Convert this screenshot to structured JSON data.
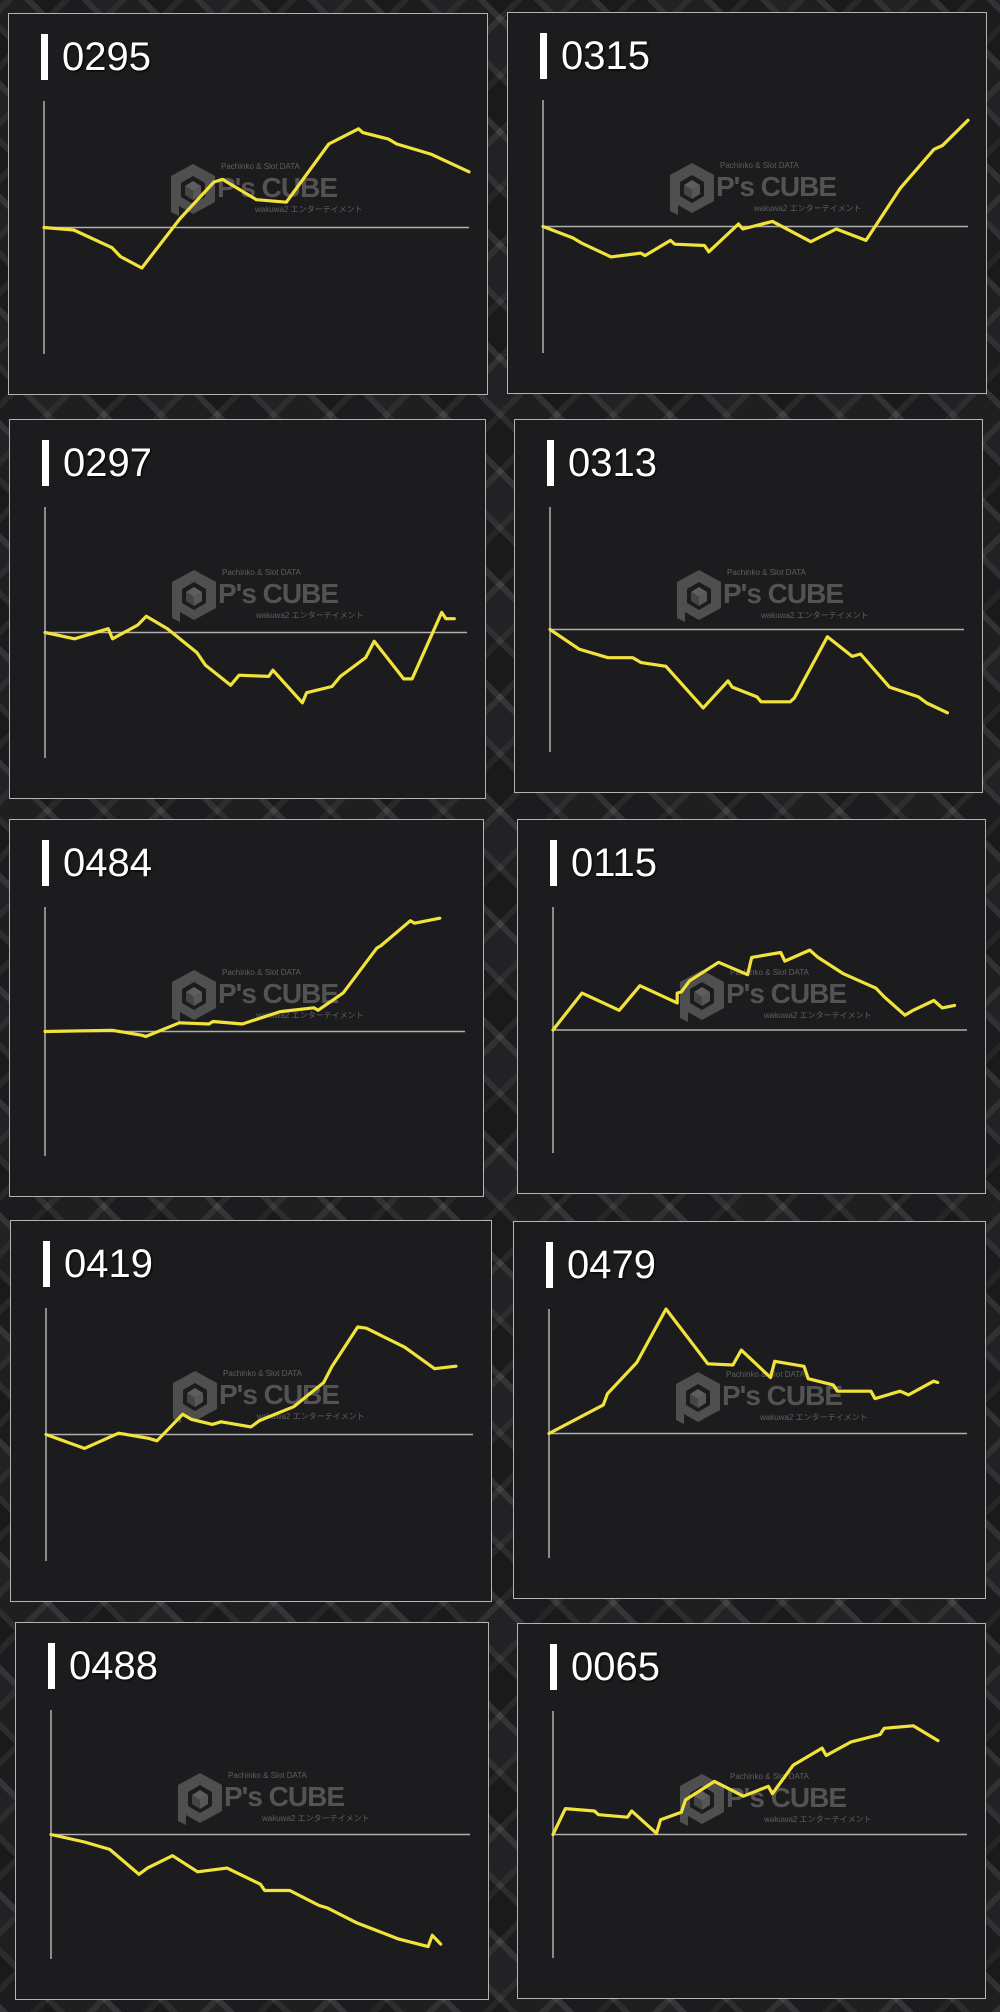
{
  "watermark": {
    "top_text": "Pachinko & Slot DATA",
    "brand": "P's CUBE",
    "tagline": "wakuwa2 エンターテイメント"
  },
  "colors": {
    "line": "#f2e33c",
    "axis": "#b0b0b0",
    "panel_bg": "#1c1c1e",
    "title": "#ffffff"
  },
  "chart_data": [
    {
      "type": "line",
      "title": "0295",
      "xlim": [
        0,
        100
      ],
      "ylim": [
        -100,
        100
      ],
      "grid": false,
      "x": [
        0,
        7,
        16,
        18,
        23,
        32,
        40,
        42,
        50,
        57,
        67,
        74,
        75,
        81,
        83,
        91,
        100
      ],
      "y": [
        0,
        -2,
        -16,
        -23,
        -32,
        7,
        36,
        38,
        22,
        20,
        66,
        78,
        75,
        70,
        66,
        58,
        44
      ]
    },
    {
      "type": "line",
      "title": "0315",
      "xlim": [
        0,
        100
      ],
      "ylim": [
        -100,
        100
      ],
      "grid": false,
      "x": [
        0,
        7,
        9,
        16,
        23,
        24,
        30,
        31,
        38,
        39,
        46,
        47,
        54,
        63,
        69,
        76,
        84,
        92,
        94,
        100
      ],
      "y": [
        0,
        -9,
        -13,
        -24,
        -21,
        -23,
        -11,
        -14,
        -15,
        -20,
        2,
        -2,
        4,
        -12,
        -2,
        -11,
        30,
        61,
        64,
        84
      ]
    },
    {
      "type": "line",
      "title": "0297",
      "xlim": [
        0,
        100
      ],
      "ylim": [
        -100,
        100
      ],
      "grid": false,
      "x": [
        0,
        7,
        15,
        16,
        22,
        24,
        29,
        36,
        38,
        44,
        46,
        53,
        54,
        61,
        62,
        68,
        70,
        76,
        78,
        85,
        87,
        94,
        95,
        97
      ],
      "y": [
        0,
        -5,
        3,
        -5,
        6,
        13,
        3,
        -16,
        -26,
        -42,
        -34,
        -35,
        -30,
        -56,
        -48,
        -43,
        -35,
        -20,
        -7,
        -37,
        -37,
        16,
        11,
        11
      ]
    },
    {
      "type": "line",
      "title": "0313",
      "xlim": [
        0,
        100
      ],
      "ylim": [
        -100,
        100
      ],
      "grid": false,
      "x": [
        0,
        7,
        14,
        20,
        22,
        28,
        37,
        43,
        44,
        50,
        51,
        58,
        59,
        67,
        73,
        75,
        82,
        89,
        91,
        96
      ],
      "y": [
        0,
        -16,
        -23,
        -23,
        -27,
        -30,
        -64,
        -42,
        -47,
        -55,
        -59,
        -59,
        -56,
        -6,
        -22,
        -20,
        -47,
        -55,
        -60,
        -68
      ]
    },
    {
      "type": "line",
      "title": "0484",
      "xlim": [
        0,
        100
      ],
      "ylim": [
        -100,
        100
      ],
      "grid": false,
      "x": [
        0,
        16,
        23,
        24,
        32,
        39,
        40,
        47,
        56,
        64,
        65,
        71,
        79,
        80,
        87,
        88,
        94
      ],
      "y": [
        0,
        1,
        -3,
        -4,
        7,
        6,
        8,
        6,
        16,
        19,
        17,
        31,
        67,
        69,
        89,
        87,
        91
      ]
    },
    {
      "type": "line",
      "title": "0115",
      "xlim": [
        0,
        100
      ],
      "ylim": [
        -100,
        100
      ],
      "grid": false,
      "x": [
        0,
        7,
        16,
        21,
        30,
        30,
        31,
        33,
        40,
        47,
        48,
        55,
        56,
        62,
        64,
        70,
        78,
        80,
        85,
        87,
        92,
        94,
        97
      ],
      "y": [
        0,
        30,
        16,
        36,
        22,
        30,
        31,
        40,
        55,
        45,
        59,
        63,
        56,
        65,
        59,
        46,
        34,
        27,
        12,
        16,
        24,
        18,
        20
      ]
    },
    {
      "type": "line",
      "title": "0419",
      "xlim": [
        0,
        100
      ],
      "ylim": [
        -100,
        100
      ],
      "grid": false,
      "x": [
        0,
        9,
        17,
        24,
        26,
        32,
        34,
        39,
        41,
        48,
        50,
        58,
        65,
        67,
        73,
        75,
        84,
        91,
        96
      ],
      "y": [
        0,
        -11,
        1,
        -3,
        -5,
        16,
        12,
        8,
        10,
        6,
        11,
        22,
        41,
        54,
        85,
        84,
        69,
        52,
        54
      ]
    },
    {
      "type": "line",
      "title": "0479",
      "xlim": [
        0,
        100
      ],
      "ylim": [
        -100,
        100
      ],
      "grid": false,
      "x": [
        0,
        13,
        14,
        21,
        28,
        38,
        44,
        46,
        53,
        54,
        61,
        62,
        68,
        69,
        77,
        78,
        84,
        86,
        92,
        93
      ],
      "y": [
        0,
        23,
        32,
        57,
        100,
        56,
        55,
        67,
        45,
        58,
        54,
        44,
        39,
        34,
        34,
        28,
        34,
        31,
        42,
        41
      ]
    },
    {
      "type": "line",
      "title": "0488",
      "xlim": [
        0,
        100
      ],
      "ylim": [
        -100,
        100
      ],
      "grid": false,
      "x": [
        0,
        8,
        14,
        21,
        23,
        29,
        35,
        42,
        50,
        51,
        57,
        64,
        66,
        73,
        83,
        90,
        91,
        93
      ],
      "y": [
        0,
        -6,
        -12,
        -32,
        -27,
        -17,
        -30,
        -27,
        -40,
        -45,
        -45,
        -57,
        -59,
        -71,
        -84,
        -90,
        -81,
        -88
      ]
    },
    {
      "type": "line",
      "title": "0065",
      "xlim": [
        0,
        100
      ],
      "ylim": [
        -100,
        100
      ],
      "grid": false,
      "x": [
        0,
        3,
        10,
        11,
        18,
        19,
        25,
        26,
        31,
        32,
        39,
        46,
        52,
        53,
        58,
        65,
        66,
        72,
        79,
        80,
        87,
        93
      ],
      "y": [
        0,
        21,
        19,
        16,
        14,
        19,
        1,
        12,
        18,
        28,
        43,
        31,
        39,
        33,
        56,
        70,
        64,
        75,
        81,
        86,
        88,
        76
      ]
    }
  ]
}
